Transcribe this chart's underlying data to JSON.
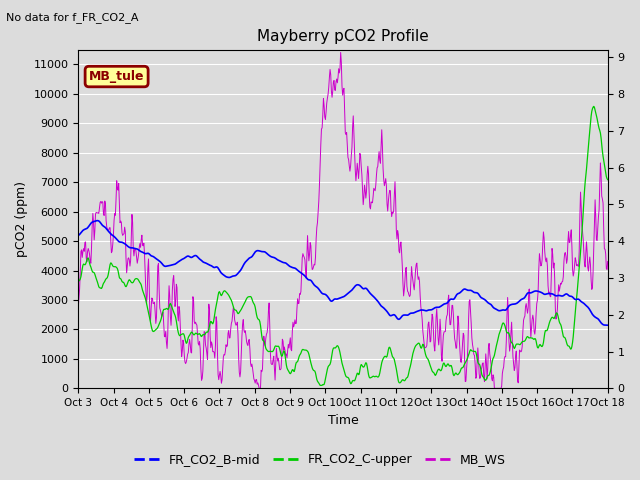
{
  "title": "Mayberry pCO2 Profile",
  "no_data_text": "No data for f_FR_CO2_A",
  "xlabel": "Time",
  "ylabel": "pCO2 (ppm)",
  "ylim_left": [
    0,
    11500
  ],
  "ylim_right": [
    0.0,
    9.2
  ],
  "yticks_left": [
    0,
    1000,
    2000,
    3000,
    4000,
    5000,
    6000,
    7000,
    8000,
    9000,
    10000,
    11000
  ],
  "yticks_right": [
    0.0,
    1.0,
    2.0,
    3.0,
    4.0,
    5.0,
    6.0,
    7.0,
    8.0,
    9.0
  ],
  "xtick_labels": [
    "Oct 3",
    "Oct 4",
    "Oct 5",
    "Oct 6",
    "Oct 7",
    "Oct 8",
    "Oct 9",
    "Oct 10",
    "Oct 11",
    "Oct 12",
    "Oct 13",
    "Oct 14",
    "Oct 15",
    "Oct 16",
    "Oct 17",
    "Oct 18"
  ],
  "legend_box_label": "MB_tule",
  "legend_box_bg": "#ffff99",
  "legend_box_border": "#8b0000",
  "line_blue_label": "FR_CO2_B-mid",
  "line_green_label": "FR_CO2_C-upper",
  "line_purple_label": "MB_WS",
  "line_blue_color": "#0000ff",
  "line_green_color": "#00cc00",
  "line_purple_color": "#cc00cc",
  "bg_color": "#dcdcdc",
  "n_points": 800,
  "seed": 42
}
